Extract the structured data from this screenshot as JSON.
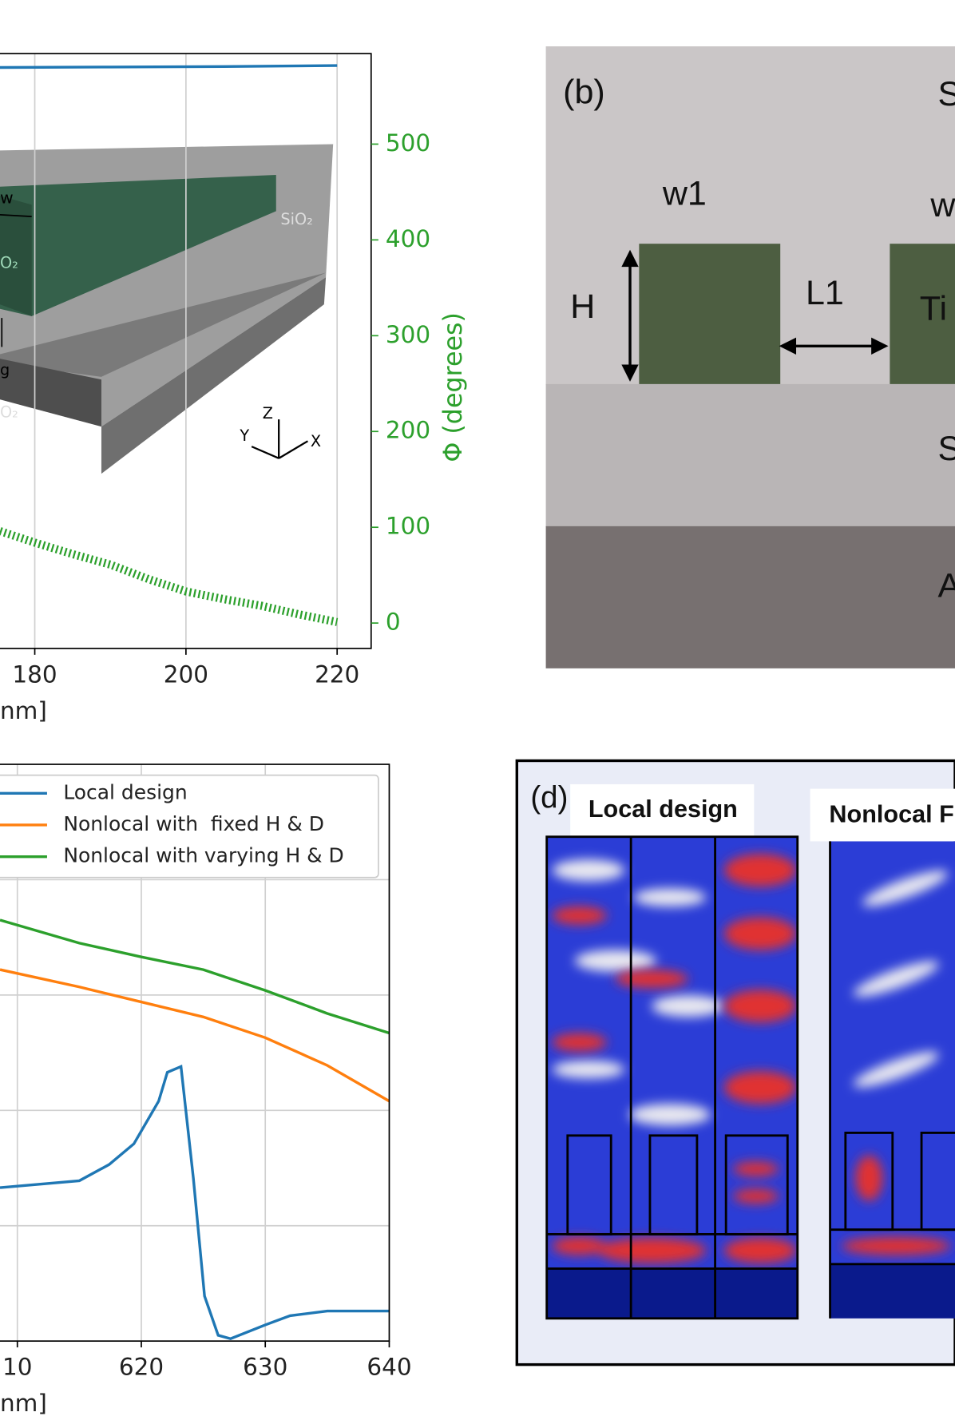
{
  "chart_data": [
    {
      "type": "line",
      "x_label": "nm]",
      "y2_label": "Φ (degrees)",
      "xlim": [
        175.4,
        224.5
      ],
      "xticks": [
        180,
        200,
        220
      ],
      "grid": true,
      "y2lim": [
        -26.5,
        594.5
      ],
      "y2ticks": [
        0,
        100,
        200,
        300,
        400,
        500
      ],
      "y2_color": "#2ca02c",
      "annotations": [
        "w",
        "SiO₂",
        "O₂",
        "g",
        "O₂",
        "Z",
        "Y",
        "X"
      ],
      "series": [
        {
          "color": "#1f77b4",
          "axis": "y2",
          "x": [
            175.4,
            190,
            205,
            220
          ],
          "values": [
            580,
            580.5,
            581,
            582
          ]
        },
        {
          "color": "#2ca02c",
          "axis": "y2",
          "marker": "*",
          "x": [
            175.4,
            180,
            185,
            190,
            195,
            200,
            205,
            210,
            215,
            220
          ],
          "values": [
            96,
            84,
            72,
            61,
            46,
            33,
            25,
            18,
            9,
            1
          ]
        }
      ]
    },
    {
      "type": "line",
      "x_label": "nm]",
      "legend": "upper left",
      "xlim": [
        608.6,
        640
      ],
      "xticks": [
        {
          "value": 610,
          "label": "10"
        },
        620,
        630,
        640
      ],
      "grid": true,
      "ylim": [
        0,
        5
      ],
      "ygrid": [
        1,
        2,
        3,
        4
      ],
      "series": [
        {
          "name": "Local design",
          "color": "#1f77b4",
          "x": [
            608.6,
            615,
            617.4,
            619.4,
            621.4,
            622.1,
            623.2,
            624.2,
            625.1,
            626.2,
            627.2,
            630,
            632,
            635,
            640
          ],
          "values": [
            1.33,
            1.39,
            1.53,
            1.71,
            2.08,
            2.33,
            2.38,
            1.41,
            0.39,
            0.05,
            0.02,
            0.14,
            0.22,
            0.26,
            0.26
          ]
        },
        {
          "name": "Nonlocal with  fixed H & D",
          "color": "#ff7f0e",
          "x": [
            608.6,
            615,
            620,
            625,
            630,
            635,
            640
          ],
          "values": [
            3.22,
            3.07,
            2.94,
            2.81,
            2.63,
            2.39,
            2.08
          ]
        },
        {
          "name": "Nonlocal with varying H & D",
          "color": "#2ca02c",
          "x": [
            608.6,
            615,
            620,
            625,
            630,
            635,
            640
          ],
          "values": [
            3.65,
            3.45,
            3.33,
            3.22,
            3.04,
            2.84,
            2.67
          ]
        }
      ]
    }
  ],
  "panel_b": {
    "label": "(b)",
    "texts": [
      "S",
      "w1",
      "w",
      "H",
      "L1",
      "Ti",
      "S",
      "A"
    ]
  },
  "panel_d": {
    "label": "(d)",
    "titles": [
      "Local design",
      "Nonlocal F"
    ]
  }
}
